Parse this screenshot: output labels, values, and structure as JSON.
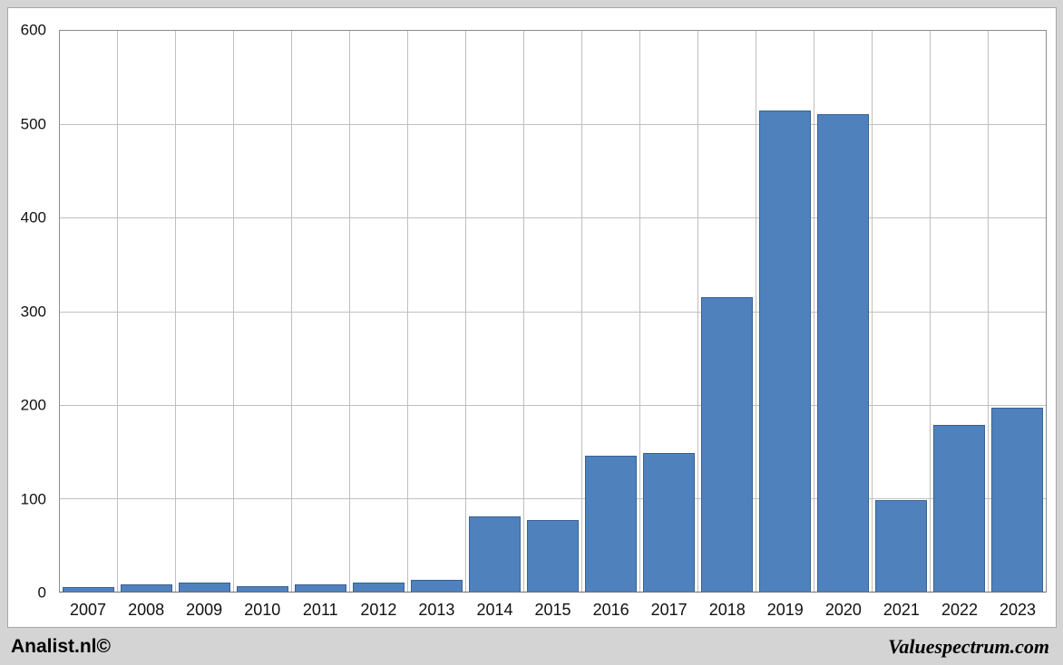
{
  "footer": {
    "left": "Analist.nl©",
    "right": "Valuespectrum.com"
  },
  "chart_data": {
    "type": "bar",
    "title": "",
    "xlabel": "",
    "ylabel": "",
    "categories": [
      "2007",
      "2008",
      "2009",
      "2010",
      "2011",
      "2012",
      "2013",
      "2014",
      "2015",
      "2016",
      "2017",
      "2018",
      "2019",
      "2020",
      "2021",
      "2022",
      "2023"
    ],
    "values": [
      5,
      8,
      10,
      6,
      8,
      10,
      13,
      80,
      77,
      145,
      148,
      315,
      515,
      511,
      98,
      178,
      197
    ],
    "ylim": [
      0,
      600
    ],
    "yticks": [
      0,
      100,
      200,
      300,
      400,
      500,
      600
    ],
    "grid": true,
    "legend": "none",
    "bar_color": "#4f81bd",
    "bar_border_color": "#39618f",
    "gridline_color": "#bfbfbf",
    "plot_background": "#ffffff",
    "outer_background": "#d4d4d4"
  }
}
